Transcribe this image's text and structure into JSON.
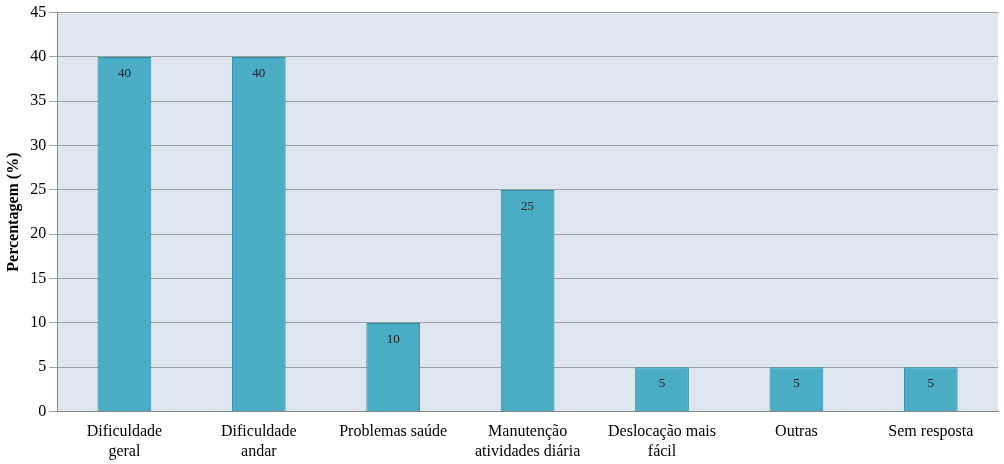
{
  "chart_data": {
    "type": "bar",
    "ylabel": "Percentagem (%)",
    "categories": [
      "Dificuldade geral",
      "Dificuldade andar",
      "Problemas saúde",
      "Manutenção atividades diária",
      "Deslocação mais fácil",
      "Outras",
      "Sem resposta"
    ],
    "values": [
      40,
      40,
      10,
      25,
      5,
      5,
      5
    ],
    "color": "#4bacc6",
    "ylim": [
      0,
      45
    ],
    "yticks": [
      0,
      5,
      10,
      15,
      20,
      25,
      30,
      35,
      40,
      45
    ],
    "grid": "y",
    "data_labels": true,
    "legend": false
  }
}
